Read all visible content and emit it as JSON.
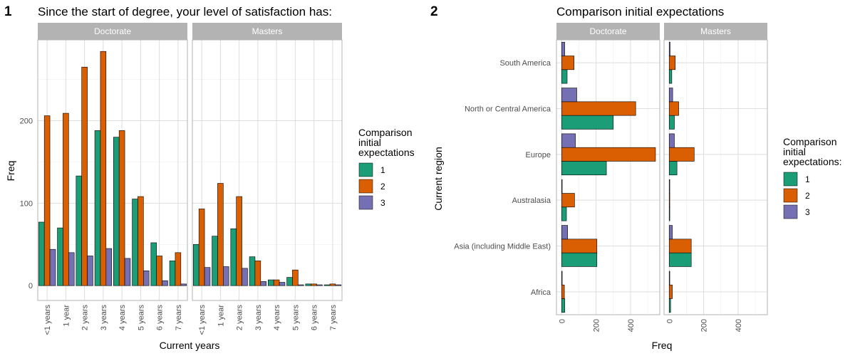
{
  "chart_data": [
    {
      "tag": "1",
      "type": "bar",
      "orientation": "vertical",
      "title": "Since the start of degree, your level of satisfaction has:",
      "xlabel": "Current years",
      "ylabel": "Freq",
      "ylim": [
        -18,
        298
      ],
      "yticks": [
        "0",
        "100",
        "200"
      ],
      "categories": [
        "<1 years",
        "1 year",
        "2 years",
        "3 years",
        "4 years",
        "5 years",
        "6 years",
        "7 years"
      ],
      "facets": [
        {
          "label": "Doctorate",
          "series": [
            {
              "name": "1",
              "values": [
                77,
                70,
                133,
                188,
                180,
                105,
                52,
                30
              ]
            },
            {
              "name": "2",
              "values": [
                206,
                209,
                265,
                284,
                188,
                108,
                36,
                40
              ]
            },
            {
              "name": "3",
              "values": [
                44,
                40,
                36,
                45,
                33,
                18,
                6,
                2
              ]
            }
          ]
        },
        {
          "label": "Masters",
          "series": [
            {
              "name": "1",
              "values": [
                50,
                60,
                69,
                35,
                7,
                10,
                2,
                1
              ]
            },
            {
              "name": "2",
              "values": [
                93,
                124,
                108,
                30,
                7,
                19,
                2,
                2
              ]
            },
            {
              "name": "3",
              "values": [
                22,
                23,
                21,
                5,
                4,
                1,
                1,
                1
              ]
            }
          ]
        }
      ],
      "legend": {
        "title": "Comparison\ninitial\nexpectations",
        "placement": "right",
        "labels": [
          "1",
          "2",
          "3"
        ]
      },
      "grid": true
    },
    {
      "tag": "2",
      "type": "bar",
      "orientation": "horizontal",
      "title": "Comparison initial expectations",
      "xlabel": "Freq",
      "ylabel": "Current region",
      "xlim": [
        -30,
        570
      ],
      "xticks": [
        "0",
        "200",
        "400"
      ],
      "categories": [
        "Africa",
        "Asia (including Middle East)",
        "Australasia",
        "Europe",
        "North or Central America",
        "South America"
      ],
      "facets": [
        {
          "label": "Doctorate",
          "series": [
            {
              "name": "1",
              "values": [
                18,
                205,
                28,
                260,
                300,
                32
              ]
            },
            {
              "name": "2",
              "values": [
                16,
                205,
                75,
                545,
                430,
                72
              ]
            },
            {
              "name": "3",
              "values": [
                2,
                35,
                3,
                80,
                88,
                18
              ]
            }
          ]
        },
        {
          "label": "Masters",
          "series": [
            {
              "name": "1",
              "values": [
                8,
                128,
                2,
                45,
                30,
                15
              ]
            },
            {
              "name": "2",
              "values": [
                18,
                128,
                3,
                145,
                55,
                35
              ]
            },
            {
              "name": "3",
              "values": [
                2,
                18,
                1,
                30,
                20,
                5
              ]
            }
          ]
        }
      ],
      "legend": {
        "title": "Comparison\ninitial\nexpectations:",
        "placement": "right",
        "labels": [
          "1",
          "2",
          "3"
        ]
      },
      "grid": true
    }
  ],
  "colors": {
    "1": "#1b9e77",
    "2": "#d95f02",
    "3": "#7570b3",
    "strip": "#b3b3b3",
    "panel_border": "#b3b3b3",
    "grid_major": "#dedede",
    "grid_minor": "#eeeeee"
  }
}
